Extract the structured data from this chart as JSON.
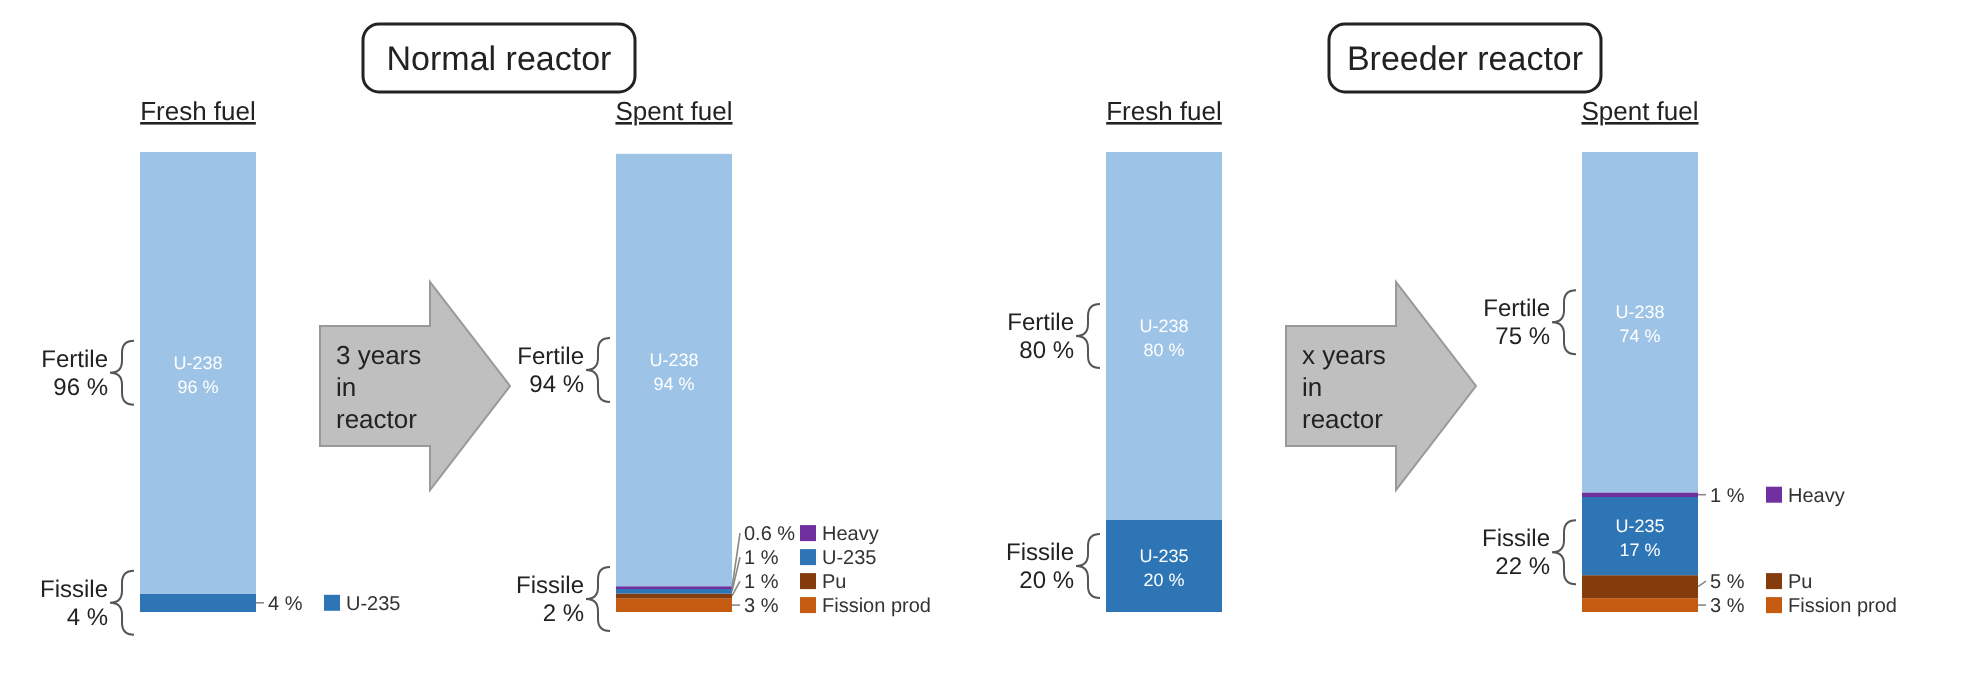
{
  "chart_data": [
    {
      "type": "bar",
      "title": "Normal reactor",
      "categories": [
        "Fresh fuel",
        "Spent fuel"
      ],
      "stacked": true,
      "legend": "bottom right",
      "ylim": [
        0,
        100
      ],
      "tick_labels": false,
      "series": [
        {
          "name": "Fission prod",
          "color": "#c55a11",
          "values": [
            null,
            3
          ],
          "value_labels": [
            null,
            "3 %"
          ]
        },
        {
          "name": "Pu",
          "color": "#843c0c",
          "values": [
            null,
            1
          ],
          "value_labels": [
            null,
            "1 %"
          ]
        },
        {
          "name": "U-235",
          "color": "#2e75b6",
          "values": [
            4,
            1
          ],
          "value_labels": [
            "4 %",
            "1 %"
          ]
        },
        {
          "name": "Heavy",
          "color": "#7030a0",
          "values": [
            null,
            0.6
          ],
          "value_labels": [
            null,
            "0.6 %"
          ]
        },
        {
          "name": "U-238",
          "color": "#9dc3e6",
          "values": [
            96,
            94
          ],
          "value_labels": [
            "96 %",
            "94 %"
          ]
        }
      ],
      "annotations": [
        "Fertile 96 %",
        "Fissile 4 %",
        "Fertile 94 %",
        "Fissile 2 %",
        "3 years in reactor"
      ]
    },
    {
      "type": "bar",
      "title": "Breeder reactor",
      "categories": [
        "Fresh fuel",
        "Spent fuel"
      ],
      "stacked": true,
      "legend": "bottom right",
      "ylim": [
        0,
        100
      ],
      "tick_labels": false,
      "series": [
        {
          "name": "Fission prod",
          "color": "#c55a11",
          "values": [
            null,
            3
          ],
          "value_labels": [
            null,
            "3 %"
          ]
        },
        {
          "name": "Pu",
          "color": "#843c0c",
          "values": [
            null,
            5
          ],
          "value_labels": [
            null,
            "5 %"
          ]
        },
        {
          "name": "U-235",
          "color": "#2e75b6",
          "values": [
            20,
            17
          ],
          "value_labels": [
            "20 %",
            "17 %"
          ]
        },
        {
          "name": "Heavy",
          "color": "#7030a0",
          "values": [
            null,
            1
          ],
          "value_labels": [
            null,
            "1 %"
          ]
        },
        {
          "name": "U-238",
          "color": "#9dc3e6",
          "values": [
            80,
            74
          ],
          "value_labels": [
            "80 %",
            "74 %"
          ]
        }
      ],
      "annotations": [
        "Fertile 80 %",
        "Fissile 20 %",
        "Fertile 75 %",
        "Fissile 22 %",
        "x years in reactor"
      ]
    }
  ]
}
